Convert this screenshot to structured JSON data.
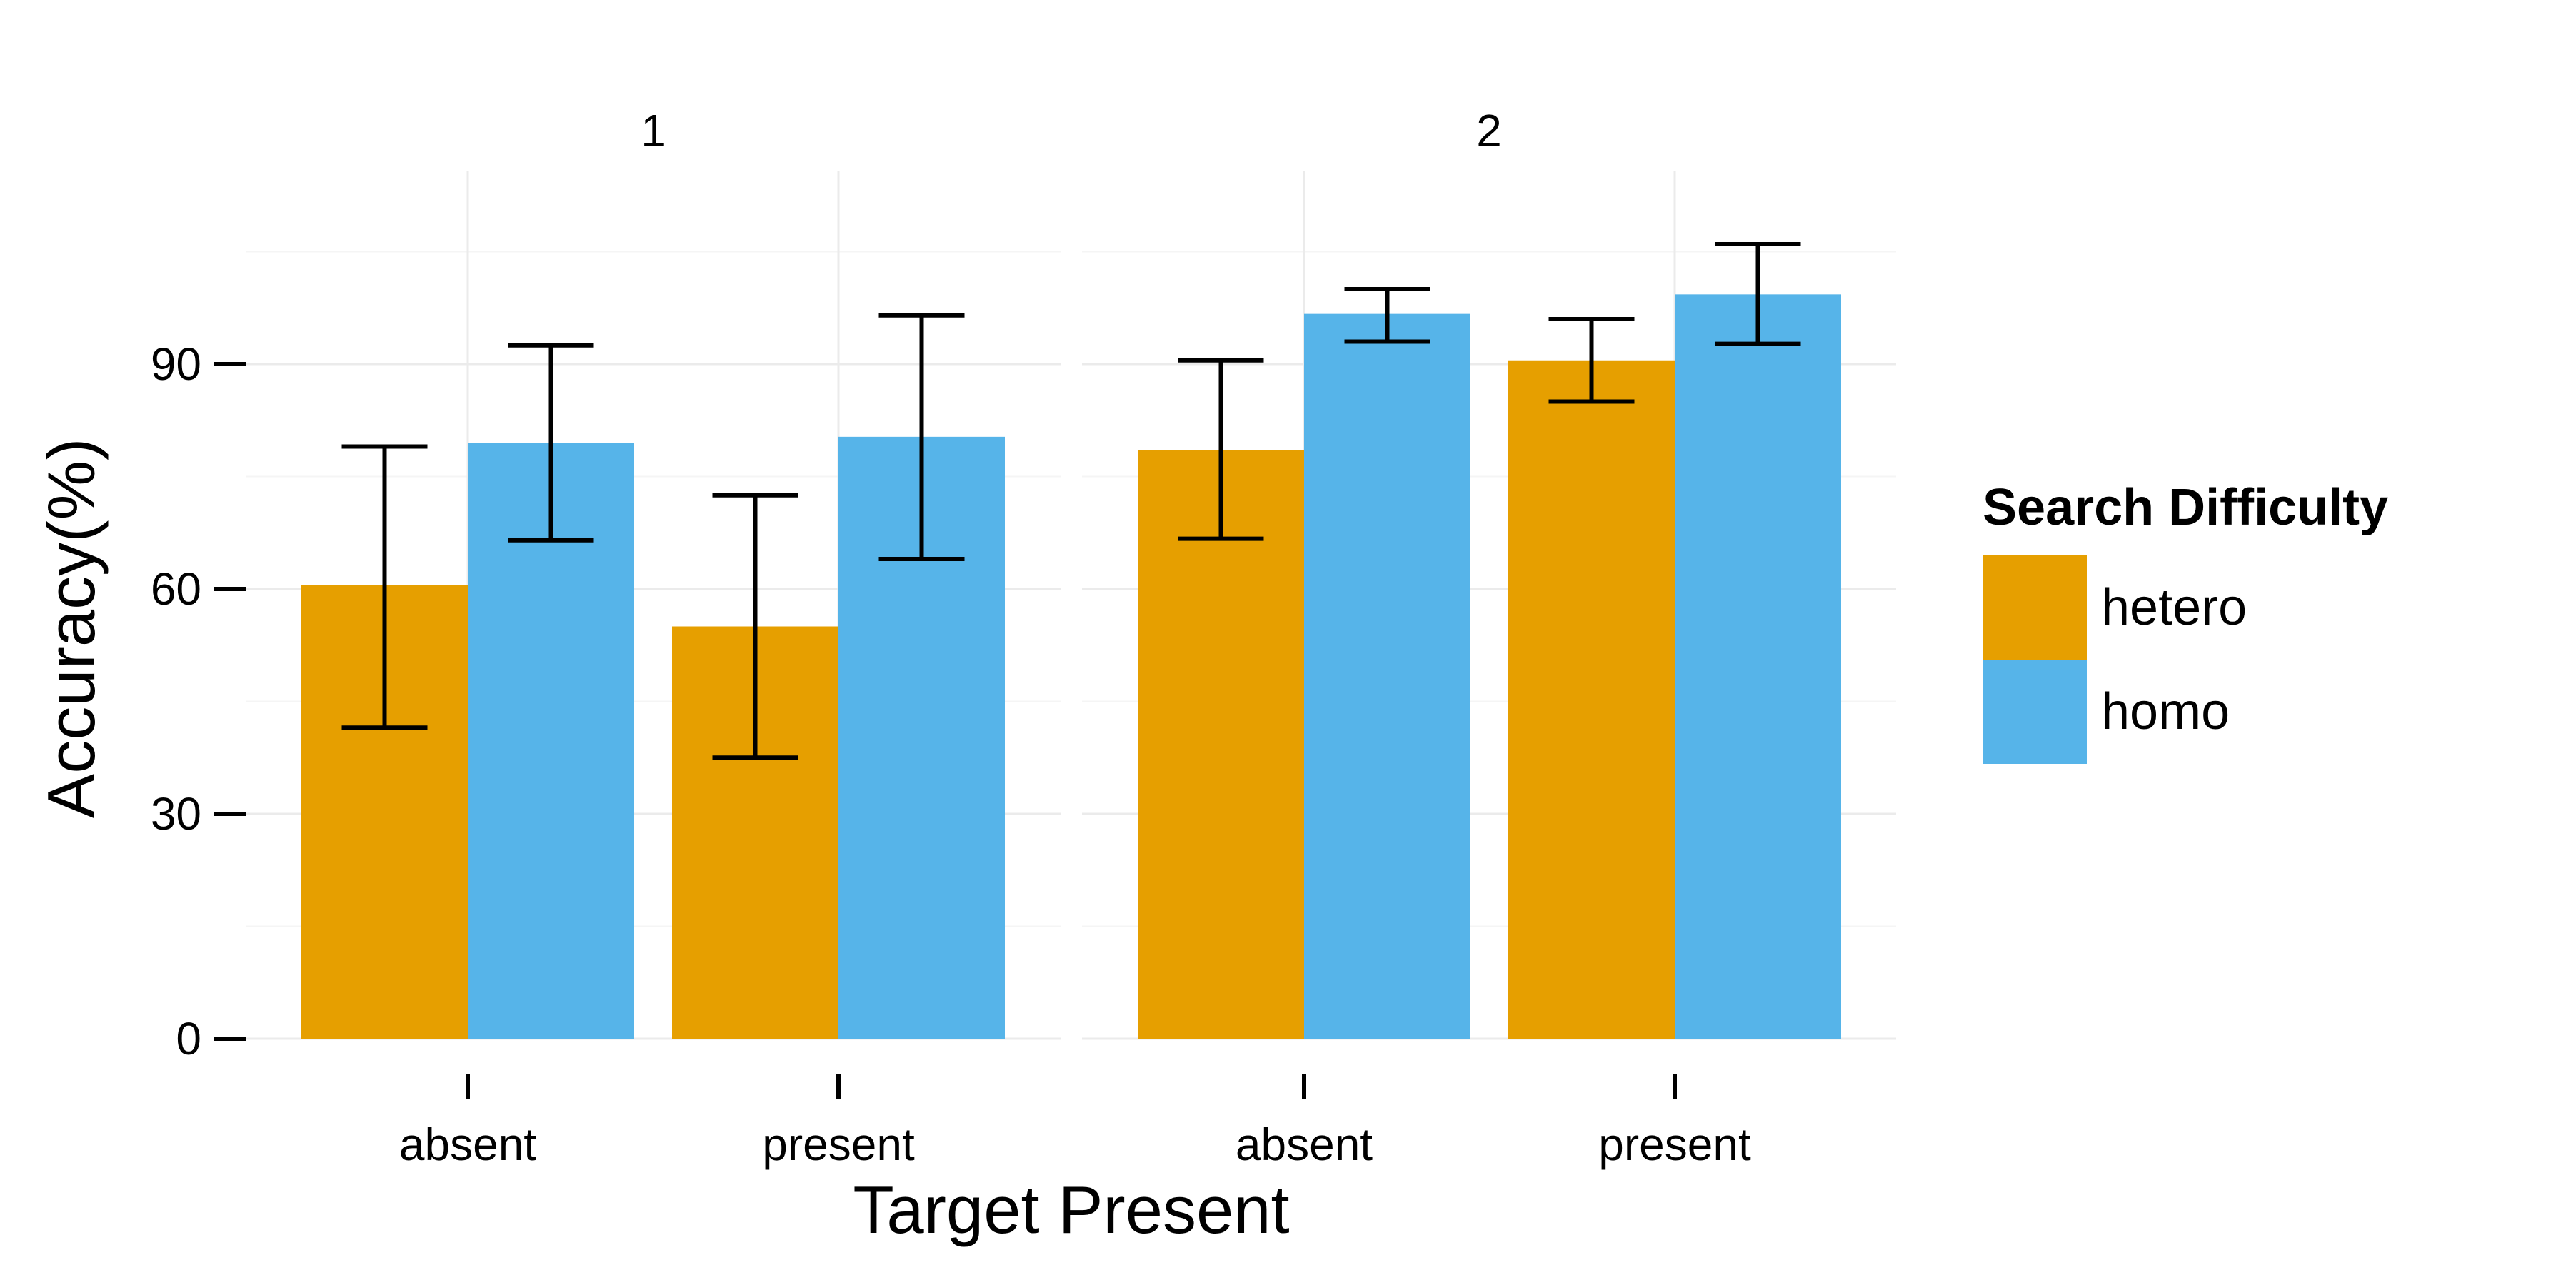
{
  "chart_data": {
    "type": "bar",
    "facets": [
      "1",
      "2"
    ],
    "categories": [
      "absent",
      "present"
    ],
    "xlabel": "Target Present",
    "ylabel": "Accuracy(%)",
    "ylim": [
      0,
      115
    ],
    "yticks": [
      0,
      30,
      60,
      90
    ],
    "legend": {
      "title": "Search Difficulty",
      "position": "right",
      "entries": [
        "hetero",
        "homo"
      ]
    },
    "colors": {
      "hetero": "#E69F00",
      "homo": "#56B4E9"
    },
    "grid": true,
    "panels": [
      {
        "facet": "1",
        "series": [
          {
            "name": "hetero",
            "values": [
              60.5,
              55.0
            ],
            "err_low": [
              41.5,
              37.5
            ],
            "err_high": [
              79.0,
              72.5
            ]
          },
          {
            "name": "homo",
            "values": [
              79.5,
              80.3
            ],
            "err_low": [
              66.5,
              64.0
            ],
            "err_high": [
              92.5,
              96.5
            ]
          }
        ]
      },
      {
        "facet": "2",
        "series": [
          {
            "name": "hetero",
            "values": [
              78.5,
              90.5
            ],
            "err_low": [
              66.7,
              85.0
            ],
            "err_high": [
              90.5,
              96.0
            ]
          },
          {
            "name": "homo",
            "values": [
              96.7,
              99.3
            ],
            "err_low": [
              93.0,
              92.7
            ],
            "err_high": [
              100.0,
              106.0
            ]
          }
        ]
      }
    ]
  }
}
